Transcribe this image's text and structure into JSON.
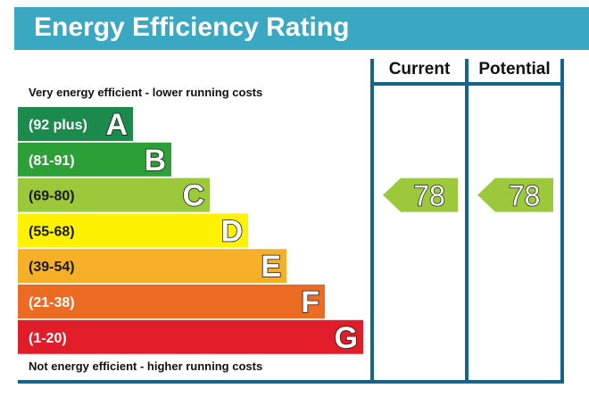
{
  "header": {
    "title": "Energy Efficiency Rating"
  },
  "columns": {
    "current": "Current",
    "potential": "Potential"
  },
  "notes": {
    "top": "Very energy efficient - lower running costs",
    "bottom": "Not energy efficient - higher running costs"
  },
  "chart_data": {
    "type": "bar",
    "bands": [
      {
        "letter": "A",
        "range": "(92 plus)",
        "color": "#1b8a4c"
      },
      {
        "letter": "B",
        "range": "(81-91)",
        "color": "#2ca036"
      },
      {
        "letter": "C",
        "range": "(69-80)",
        "color": "#9bc93b"
      },
      {
        "letter": "D",
        "range": "(55-68)",
        "color": "#fef200"
      },
      {
        "letter": "E",
        "range": "(39-54)",
        "color": "#f5b028"
      },
      {
        "letter": "F",
        "range": "(21-38)",
        "color": "#ec6b23"
      },
      {
        "letter": "G",
        "range": "(1-20)",
        "color": "#e11d2a"
      }
    ],
    "current": {
      "value": "78",
      "band": "C"
    },
    "potential": {
      "value": "78",
      "band": "C"
    }
  }
}
